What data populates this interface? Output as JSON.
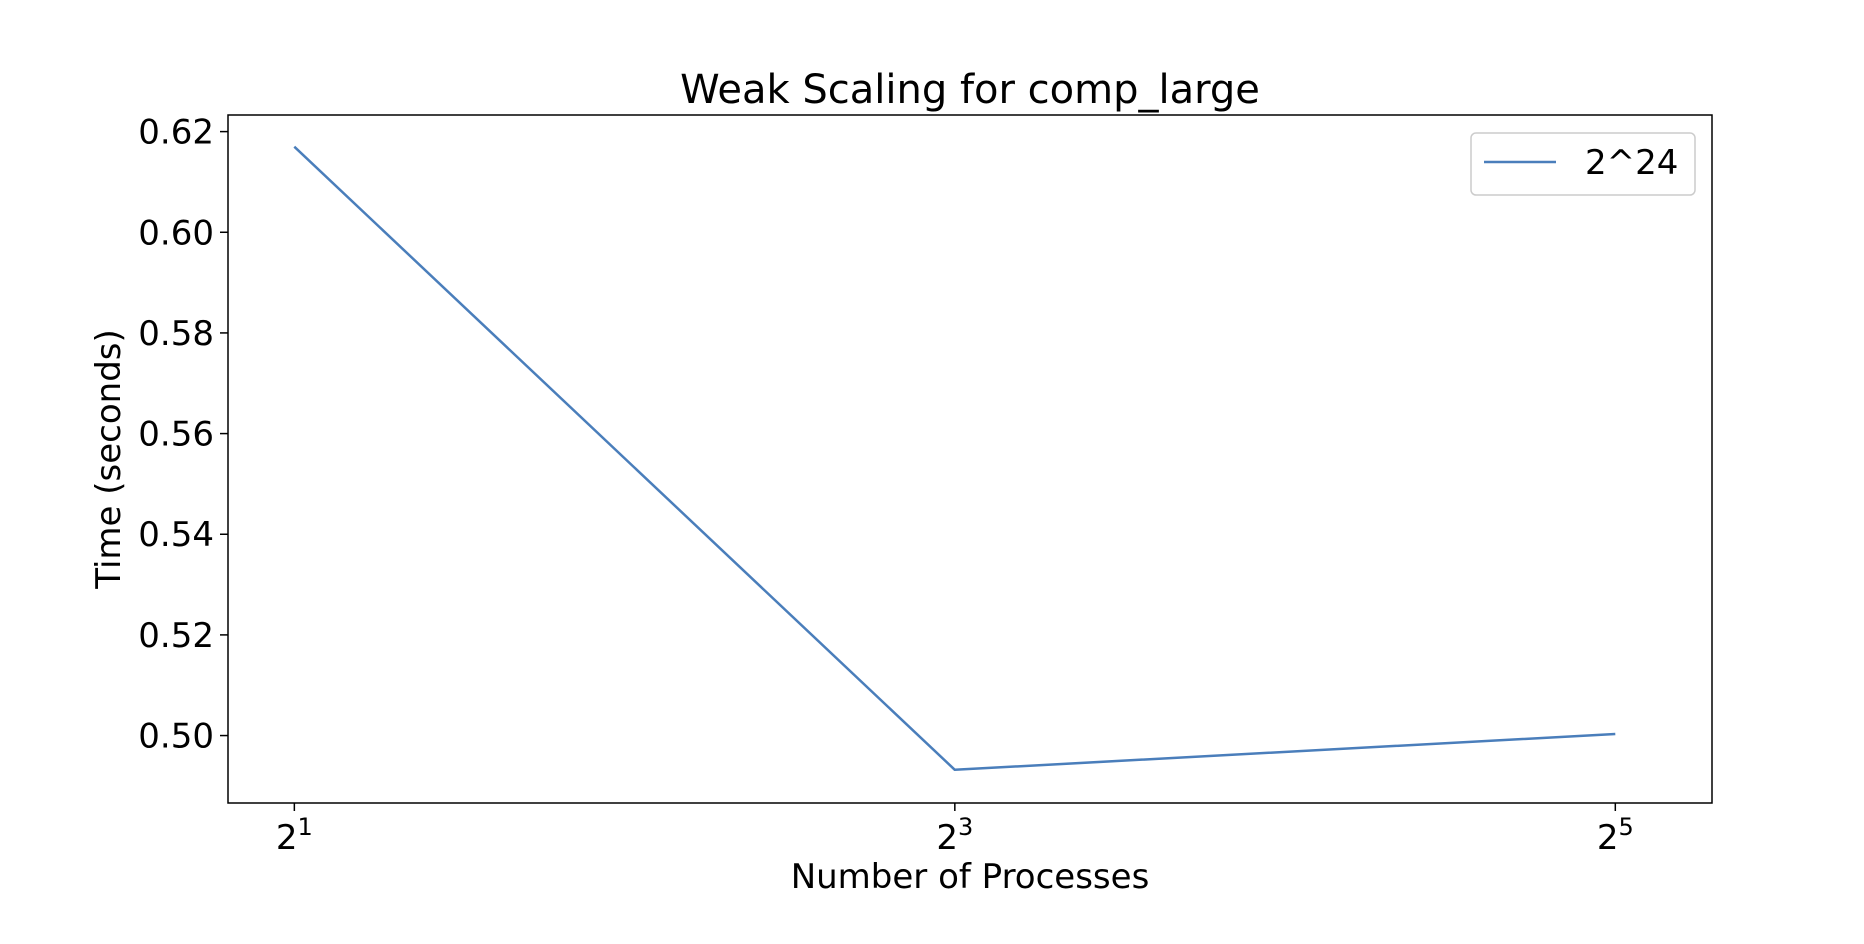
{
  "chart_data": {
    "type": "line",
    "title": "Weak Scaling for comp_large",
    "xlabel": "Number of Processes",
    "ylabel": "Time (seconds)",
    "x_scale": "log2",
    "x": [
      2,
      8,
      32
    ],
    "x_ticks": [
      {
        "value": 2,
        "base": "2",
        "exp": "1"
      },
      {
        "value": 8,
        "base": "2",
        "exp": "3"
      },
      {
        "value": 32,
        "base": "2",
        "exp": "5"
      }
    ],
    "y_ticks": [
      {
        "value": 0.5,
        "label": "0.50"
      },
      {
        "value": 0.52,
        "label": "0.52"
      },
      {
        "value": 0.54,
        "label": "0.54"
      },
      {
        "value": 0.56,
        "label": "0.56"
      },
      {
        "value": 0.58,
        "label": "0.58"
      },
      {
        "value": 0.6,
        "label": "0.60"
      },
      {
        "value": 0.62,
        "label": "0.62"
      }
    ],
    "ylim": [
      0.4866,
      0.6233
    ],
    "xlim": [
      1.74,
      39.2
    ],
    "series": [
      {
        "name": "2^24",
        "color": "#4a7ebb",
        "values": [
          0.617,
          0.4932,
          0.5003
        ]
      }
    ],
    "legend_position": "upper right",
    "grid": false
  }
}
